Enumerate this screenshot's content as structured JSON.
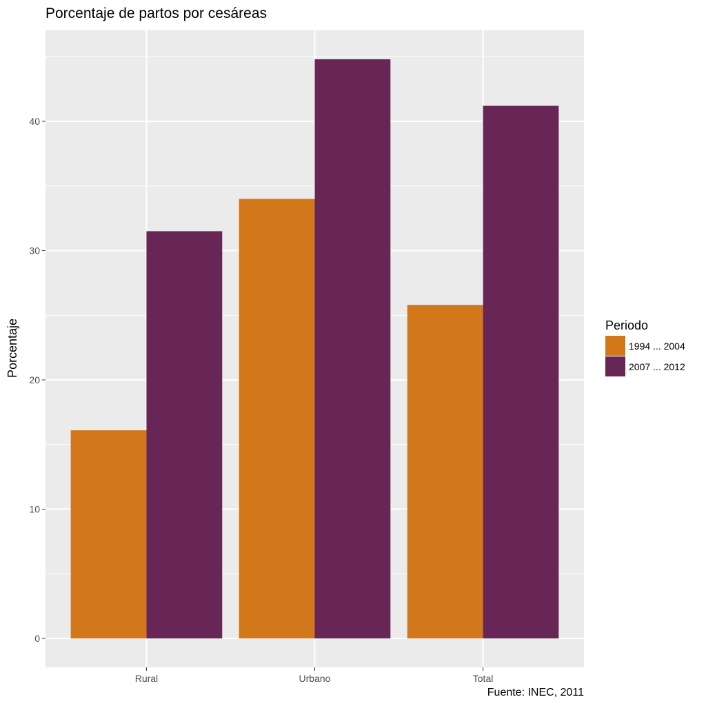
{
  "chart_data": {
    "type": "bar",
    "title": "Porcentaje de partos por cesáreas",
    "xlabel": "",
    "ylabel": "Porcentaje",
    "caption": "Fuente: INEC, 2011",
    "categories": [
      "Rural",
      "Urbano",
      "Total"
    ],
    "series": [
      {
        "name": "1994 ... 2004",
        "color": "#d2781b",
        "values": [
          16.1,
          34.0,
          25.8
        ]
      },
      {
        "name": "2007 ... 2012",
        "color": "#682656",
        "values": [
          31.5,
          44.8,
          41.2
        ]
      }
    ],
    "ylim": [
      -2.24,
      47.04
    ],
    "yticks": [
      0,
      10,
      20,
      30,
      40
    ],
    "grid": true,
    "legend": {
      "title": "Periodo",
      "position": "right"
    },
    "panel_background": "#ebebeb",
    "gridline_color": "#ffffff"
  }
}
